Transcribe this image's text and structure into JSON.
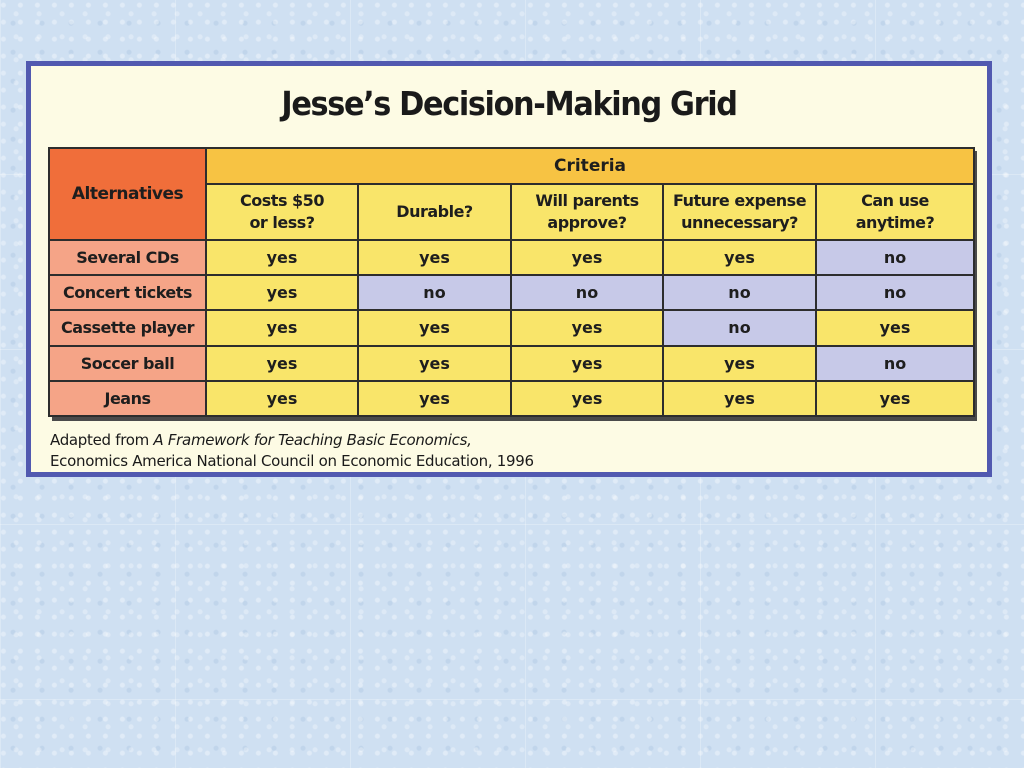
{
  "title": "Jesse’s Decision-Making Grid",
  "table": {
    "alternatives_header": "Alternatives",
    "criteria_header": "Criteria",
    "criteria": [
      [
        "Costs $50",
        "or less?"
      ],
      [
        "Durable?"
      ],
      [
        "Will parents",
        "approve?"
      ],
      [
        "Future expense",
        "unnecessary?"
      ],
      [
        "Can use",
        "anytime?"
      ]
    ],
    "rows": [
      {
        "name": "Several CDs",
        "values": [
          "yes",
          "yes",
          "yes",
          "yes",
          "no"
        ]
      },
      {
        "name": "Concert tickets",
        "values": [
          "yes",
          "no",
          "no",
          "no",
          "no"
        ]
      },
      {
        "name": "Cassette player",
        "values": [
          "yes",
          "yes",
          "yes",
          "no",
          "yes"
        ]
      },
      {
        "name": "Soccer ball",
        "values": [
          "yes",
          "yes",
          "yes",
          "yes",
          "no"
        ]
      },
      {
        "name": "Jeans",
        "values": [
          "yes",
          "yes",
          "yes",
          "yes",
          "yes"
        ]
      }
    ]
  },
  "caption": {
    "prefix": "Adapted from ",
    "source_title": "A Framework for Teaching Basic Economics,",
    "line2": "Economics America National Council on Economic Education, 1996"
  },
  "colors": {
    "border": "#5159b0",
    "panel_background": "#fdfbe4",
    "alternatives_header": "#f06e3a",
    "criteria_header": "#f7c343",
    "criteria_cells": "#f9e56a",
    "alternative_cells": "#f5a487",
    "yes_cell": "#f9e56a",
    "no_cell": "#c7c9e8"
  }
}
